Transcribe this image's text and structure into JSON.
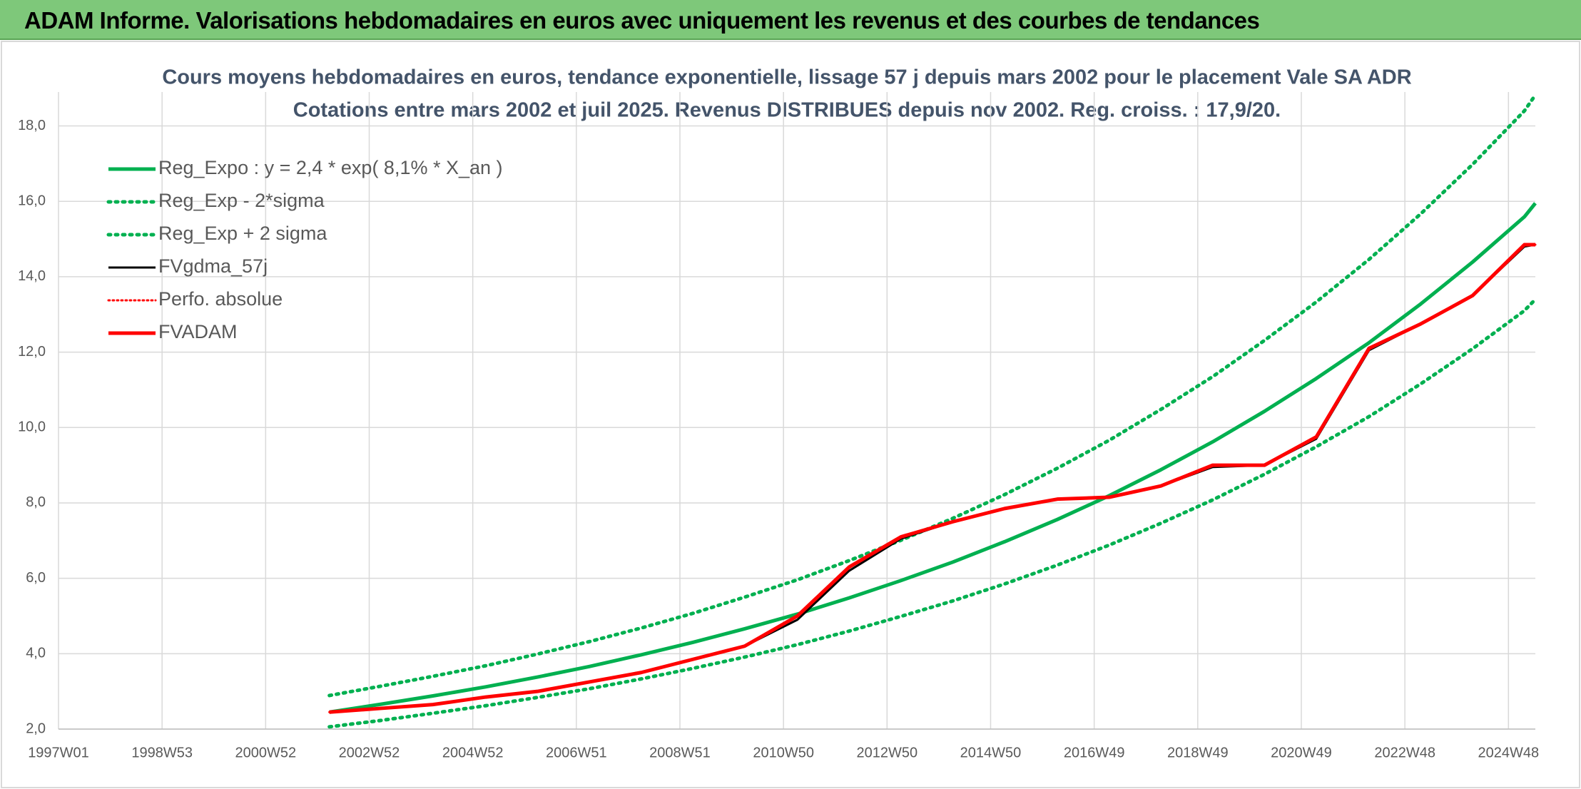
{
  "header": {
    "title": "ADAM Informe. Valorisations hebdomadaires en euros avec uniquement les revenus et des courbes de tendances"
  },
  "chart_data": {
    "type": "line",
    "title": "Cours moyens hebdomadaires en euros, tendance exponentielle, lissage 57 j depuis mars 2002 pour le placement Vale SA ADR",
    "subtitle": "Cotations entre mars 2002 et juil 2025. Revenus DISTRIBUES depuis nov 2002. Reg. croiss. : 17,9/20.",
    "x": [
      272,
      324,
      376,
      429,
      481,
      533,
      585,
      637,
      689,
      742,
      794,
      846,
      898,
      950,
      1003,
      1055,
      1107,
      1159,
      1211,
      1263,
      1316,
      1368,
      1420,
      1472,
      1483
    ],
    "xlim": [
      0,
      1483
    ],
    "xticks": [
      {
        "value": 0,
        "label": "1997W01"
      },
      {
        "value": 104,
        "label": "1998W53"
      },
      {
        "value": 208,
        "label": "2000W52"
      },
      {
        "value": 312,
        "label": "2002W52"
      },
      {
        "value": 416,
        "label": "2004W52"
      },
      {
        "value": 520,
        "label": "2006W51"
      },
      {
        "value": 624,
        "label": "2008W51"
      },
      {
        "value": 728,
        "label": "2010W50"
      },
      {
        "value": 832,
        "label": "2012W50"
      },
      {
        "value": 936,
        "label": "2014W50"
      },
      {
        "value": 1040,
        "label": "2016W49"
      },
      {
        "value": 1144,
        "label": "2018W49"
      },
      {
        "value": 1248,
        "label": "2020W49"
      },
      {
        "value": 1352,
        "label": "2022W48"
      },
      {
        "value": 1456,
        "label": "2024W48"
      }
    ],
    "ylim": [
      2,
      18.9
    ],
    "yticks": [
      {
        "value": 2,
        "label": "2,0"
      },
      {
        "value": 4,
        "label": "4,0"
      },
      {
        "value": 6,
        "label": "6,0"
      },
      {
        "value": 8,
        "label": "8,0"
      },
      {
        "value": 10,
        "label": "10,0"
      },
      {
        "value": 12,
        "label": "12,0"
      },
      {
        "value": 14,
        "label": "14,0"
      },
      {
        "value": 16,
        "label": "16,0"
      },
      {
        "value": 18,
        "label": "18,0"
      }
    ],
    "grid": true,
    "legend": "top-left",
    "series": [
      {
        "name": "Reg_Expo : y = 2,4 * exp( 8,1% *  X_an )",
        "color": "#00b050",
        "style": "solid",
        "width": 5,
        "values": [
          2.45,
          2.66,
          2.88,
          3.12,
          3.38,
          3.66,
          3.97,
          4.3,
          4.66,
          5.05,
          5.48,
          5.94,
          6.43,
          6.97,
          7.56,
          8.19,
          8.88,
          9.62,
          10.43,
          11.3,
          12.25,
          13.28,
          14.39,
          15.59,
          15.95
        ]
      },
      {
        "name": "Reg_Exp - 2*sigma",
        "color": "#00b050",
        "style": "dotted",
        "width": 5,
        "values": [
          2.06,
          2.23,
          2.42,
          2.62,
          2.84,
          3.07,
          3.33,
          3.61,
          3.91,
          4.24,
          4.6,
          4.99,
          5.4,
          5.85,
          6.35,
          6.88,
          7.46,
          8.08,
          8.76,
          9.49,
          10.29,
          11.16,
          12.09,
          13.1,
          13.4
        ]
      },
      {
        "name": "Reg_Exp + 2 sigma",
        "color": "#00b050",
        "style": "dotted",
        "width": 5,
        "values": [
          2.89,
          3.14,
          3.4,
          3.68,
          3.99,
          4.32,
          4.68,
          5.07,
          5.5,
          5.96,
          6.47,
          7.01,
          7.59,
          8.22,
          8.92,
          9.66,
          10.48,
          11.35,
          12.31,
          13.33,
          14.46,
          15.67,
          16.98,
          18.4,
          18.82
        ]
      },
      {
        "name": "FVgdma_57j",
        "color": "#000000",
        "style": "solid",
        "width": 3,
        "values": [
          2.45,
          2.55,
          2.66,
          2.84,
          3.0,
          3.24,
          3.5,
          3.84,
          4.2,
          4.9,
          6.2,
          7.05,
          7.5,
          7.85,
          8.1,
          8.15,
          8.45,
          8.95,
          9.0,
          9.7,
          12.05,
          12.75,
          13.5,
          14.8,
          14.85
        ]
      },
      {
        "name": "Perfo. absolue",
        "color": "#ff0000",
        "style": "dotted",
        "width": 3,
        "values": [
          2.45,
          2.55,
          2.65,
          2.85,
          3.0,
          3.25,
          3.5,
          3.85,
          4.2,
          5.0,
          6.3,
          7.1,
          7.5,
          7.85,
          8.1,
          8.15,
          8.45,
          9.0,
          9.0,
          9.75,
          12.1,
          12.75,
          13.5,
          14.85,
          14.85
        ]
      },
      {
        "name": "FVADAM",
        "color": "#ff0000",
        "style": "solid",
        "width": 5,
        "values": [
          2.45,
          2.55,
          2.65,
          2.85,
          3.0,
          3.25,
          3.5,
          3.85,
          4.2,
          5.0,
          6.3,
          7.1,
          7.5,
          7.85,
          8.1,
          8.15,
          8.45,
          9.0,
          9.0,
          9.75,
          12.1,
          12.75,
          13.5,
          14.85,
          14.85
        ]
      }
    ]
  }
}
